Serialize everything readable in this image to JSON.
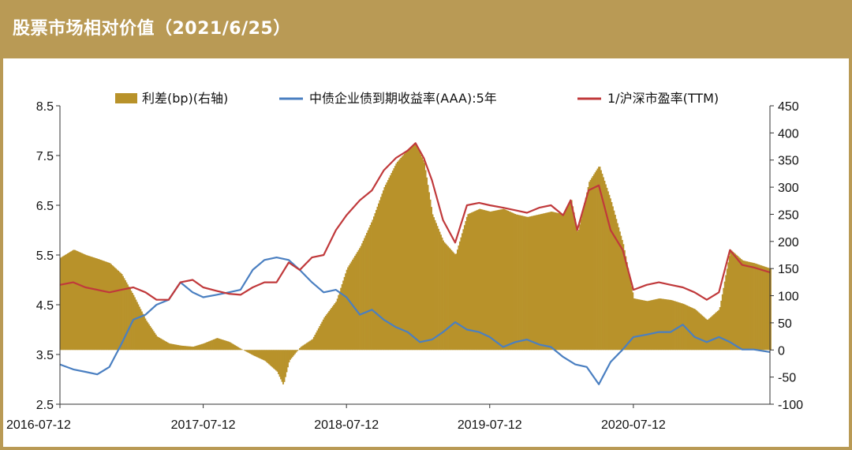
{
  "header": {
    "title": "股票市场相对价值（2021/6/25）"
  },
  "chart_data": {
    "type": "bar+line",
    "title": "股票市场相对价值（2021/6/25）",
    "legend": {
      "placement": "top",
      "items": [
        "利差(bp)(右轴)",
        "中债企业债到期收益率(AAA):5年",
        "1/沪深市盈率(TTM)"
      ]
    },
    "x_ticks": [
      "2016-07-12",
      "2017-07-12",
      "2018-07-12",
      "2019-07-12",
      "2020-07-12"
    ],
    "x_range": [
      "2016-07-12",
      "2021-06-25"
    ],
    "y_left": {
      "range": [
        2.5,
        8.5
      ],
      "ticks": [
        "8.5",
        "7.5",
        "6.5",
        "5.5",
        "4.5",
        "3.5",
        "2.5"
      ]
    },
    "y_right": {
      "range": [
        -100,
        450
      ],
      "ticks": [
        "450",
        "400",
        "350",
        "300",
        "250",
        "200",
        "150",
        "100",
        "50",
        "0",
        "-50",
        "-100"
      ]
    },
    "colors": {
      "spread": "#b8922a",
      "yield": "#4a7fc1",
      "pe_inverse": "#c0393b"
    },
    "series": [
      {
        "name": "利差(bp)(右轴)",
        "axis": "right",
        "type": "bar",
        "points": [
          [
            "2016-07-12",
            170
          ],
          [
            "2016-08-15",
            185
          ],
          [
            "2016-09-15",
            175
          ],
          [
            "2016-10-15",
            168
          ],
          [
            "2016-11-15",
            160
          ],
          [
            "2016-12-15",
            140
          ],
          [
            "2017-01-15",
            100
          ],
          [
            "2017-02-15",
            55
          ],
          [
            "2017-03-15",
            25
          ],
          [
            "2017-04-15",
            12
          ],
          [
            "2017-05-15",
            8
          ],
          [
            "2017-06-15",
            6
          ],
          [
            "2017-07-12",
            12
          ],
          [
            "2017-08-15",
            22
          ],
          [
            "2017-09-15",
            15
          ],
          [
            "2017-10-15",
            2
          ],
          [
            "2017-11-15",
            -10
          ],
          [
            "2017-12-15",
            -20
          ],
          [
            "2018-01-15",
            -40
          ],
          [
            "2018-01-31",
            -65
          ],
          [
            "2018-02-15",
            -20
          ],
          [
            "2018-03-15",
            5
          ],
          [
            "2018-04-15",
            20
          ],
          [
            "2018-05-15",
            60
          ],
          [
            "2018-06-15",
            90
          ],
          [
            "2018-07-12",
            150
          ],
          [
            "2018-08-15",
            190
          ],
          [
            "2018-09-15",
            240
          ],
          [
            "2018-10-15",
            300
          ],
          [
            "2018-11-15",
            345
          ],
          [
            "2018-12-15",
            370
          ],
          [
            "2019-01-04",
            380
          ],
          [
            "2019-01-25",
            345
          ],
          [
            "2019-02-15",
            250
          ],
          [
            "2019-03-15",
            200
          ],
          [
            "2019-04-15",
            175
          ],
          [
            "2019-05-15",
            250
          ],
          [
            "2019-06-15",
            260
          ],
          [
            "2019-07-12",
            255
          ],
          [
            "2019-08-15",
            260
          ],
          [
            "2019-09-15",
            250
          ],
          [
            "2019-10-15",
            245
          ],
          [
            "2019-11-15",
            250
          ],
          [
            "2019-12-15",
            255
          ],
          [
            "2020-01-15",
            250
          ],
          [
            "2020-02-03",
            280
          ],
          [
            "2020-02-20",
            215
          ],
          [
            "2020-03-20",
            310
          ],
          [
            "2020-04-15",
            340
          ],
          [
            "2020-05-15",
            275
          ],
          [
            "2020-06-15",
            195
          ],
          [
            "2020-07-12",
            95
          ],
          [
            "2020-08-15",
            90
          ],
          [
            "2020-09-15",
            95
          ],
          [
            "2020-10-15",
            92
          ],
          [
            "2020-11-15",
            85
          ],
          [
            "2020-12-15",
            75
          ],
          [
            "2021-01-15",
            55
          ],
          [
            "2021-02-15",
            75
          ],
          [
            "2021-03-15",
            185
          ],
          [
            "2021-04-15",
            165
          ],
          [
            "2021-05-15",
            160
          ],
          [
            "2021-06-25",
            150
          ]
        ]
      },
      {
        "name": "中债企业债到期收益率(AAA):5年",
        "axis": "left",
        "type": "line",
        "points": [
          [
            "2016-07-12",
            3.3
          ],
          [
            "2016-08-15",
            3.2
          ],
          [
            "2016-09-15",
            3.15
          ],
          [
            "2016-10-15",
            3.1
          ],
          [
            "2016-11-15",
            3.25
          ],
          [
            "2016-12-15",
            3.7
          ],
          [
            "2017-01-15",
            4.2
          ],
          [
            "2017-02-15",
            4.3
          ],
          [
            "2017-03-15",
            4.5
          ],
          [
            "2017-04-15",
            4.6
          ],
          [
            "2017-05-15",
            4.95
          ],
          [
            "2017-06-15",
            4.75
          ],
          [
            "2017-07-12",
            4.65
          ],
          [
            "2017-08-15",
            4.7
          ],
          [
            "2017-09-15",
            4.75
          ],
          [
            "2017-10-15",
            4.8
          ],
          [
            "2017-11-15",
            5.2
          ],
          [
            "2017-12-15",
            5.4
          ],
          [
            "2018-01-15",
            5.45
          ],
          [
            "2018-02-15",
            5.4
          ],
          [
            "2018-03-15",
            5.2
          ],
          [
            "2018-04-15",
            4.95
          ],
          [
            "2018-05-15",
            4.75
          ],
          [
            "2018-06-15",
            4.8
          ],
          [
            "2018-07-12",
            4.65
          ],
          [
            "2018-08-15",
            4.3
          ],
          [
            "2018-09-15",
            4.4
          ],
          [
            "2018-10-15",
            4.2
          ],
          [
            "2018-11-15",
            4.05
          ],
          [
            "2018-12-15",
            3.95
          ],
          [
            "2019-01-15",
            3.75
          ],
          [
            "2019-02-15",
            3.8
          ],
          [
            "2019-03-15",
            3.95
          ],
          [
            "2019-04-15",
            4.15
          ],
          [
            "2019-05-15",
            4.0
          ],
          [
            "2019-06-15",
            3.95
          ],
          [
            "2019-07-12",
            3.85
          ],
          [
            "2019-08-15",
            3.65
          ],
          [
            "2019-09-15",
            3.75
          ],
          [
            "2019-10-15",
            3.8
          ],
          [
            "2019-11-15",
            3.7
          ],
          [
            "2019-12-15",
            3.65
          ],
          [
            "2020-01-15",
            3.45
          ],
          [
            "2020-02-15",
            3.3
          ],
          [
            "2020-03-15",
            3.25
          ],
          [
            "2020-04-15",
            2.9
          ],
          [
            "2020-05-15",
            3.35
          ],
          [
            "2020-06-15",
            3.6
          ],
          [
            "2020-07-12",
            3.85
          ],
          [
            "2020-08-15",
            3.9
          ],
          [
            "2020-09-15",
            3.95
          ],
          [
            "2020-10-15",
            3.95
          ],
          [
            "2020-11-15",
            4.1
          ],
          [
            "2020-12-15",
            3.85
          ],
          [
            "2021-01-15",
            3.75
          ],
          [
            "2021-02-15",
            3.85
          ],
          [
            "2021-03-15",
            3.75
          ],
          [
            "2021-04-15",
            3.6
          ],
          [
            "2021-05-15",
            3.6
          ],
          [
            "2021-06-25",
            3.55
          ]
        ]
      },
      {
        "name": "1/沪深市盈率(TTM)",
        "axis": "left",
        "type": "line",
        "points": [
          [
            "2016-07-12",
            4.9
          ],
          [
            "2016-08-15",
            4.95
          ],
          [
            "2016-09-15",
            4.85
          ],
          [
            "2016-10-15",
            4.8
          ],
          [
            "2016-11-15",
            4.75
          ],
          [
            "2016-12-15",
            4.8
          ],
          [
            "2017-01-15",
            4.85
          ],
          [
            "2017-02-15",
            4.75
          ],
          [
            "2017-03-15",
            4.6
          ],
          [
            "2017-04-15",
            4.6
          ],
          [
            "2017-05-15",
            4.95
          ],
          [
            "2017-06-15",
            5.0
          ],
          [
            "2017-07-12",
            4.85
          ],
          [
            "2017-08-15",
            4.78
          ],
          [
            "2017-09-15",
            4.72
          ],
          [
            "2017-10-15",
            4.7
          ],
          [
            "2017-11-15",
            4.85
          ],
          [
            "2017-12-15",
            4.95
          ],
          [
            "2018-01-15",
            4.95
          ],
          [
            "2018-02-15",
            5.35
          ],
          [
            "2018-03-15",
            5.2
          ],
          [
            "2018-04-15",
            5.45
          ],
          [
            "2018-05-15",
            5.5
          ],
          [
            "2018-06-15",
            6.0
          ],
          [
            "2018-07-12",
            6.3
          ],
          [
            "2018-08-15",
            6.6
          ],
          [
            "2018-09-15",
            6.8
          ],
          [
            "2018-10-15",
            7.2
          ],
          [
            "2018-11-15",
            7.45
          ],
          [
            "2018-12-15",
            7.6
          ],
          [
            "2019-01-04",
            7.75
          ],
          [
            "2019-01-25",
            7.45
          ],
          [
            "2019-02-15",
            7.0
          ],
          [
            "2019-03-15",
            6.2
          ],
          [
            "2019-04-15",
            5.75
          ],
          [
            "2019-05-15",
            6.5
          ],
          [
            "2019-06-15",
            6.55
          ],
          [
            "2019-07-12",
            6.5
          ],
          [
            "2019-08-15",
            6.45
          ],
          [
            "2019-09-15",
            6.4
          ],
          [
            "2019-10-15",
            6.35
          ],
          [
            "2019-11-15",
            6.45
          ],
          [
            "2019-12-15",
            6.5
          ],
          [
            "2020-01-15",
            6.3
          ],
          [
            "2020-02-03",
            6.6
          ],
          [
            "2020-02-20",
            6.0
          ],
          [
            "2020-03-20",
            6.8
          ],
          [
            "2020-04-15",
            6.9
          ],
          [
            "2020-05-15",
            6.0
          ],
          [
            "2020-06-15",
            5.6
          ],
          [
            "2020-07-12",
            4.8
          ],
          [
            "2020-08-15",
            4.9
          ],
          [
            "2020-09-15",
            4.95
          ],
          [
            "2020-10-15",
            4.9
          ],
          [
            "2020-11-15",
            4.85
          ],
          [
            "2020-12-15",
            4.75
          ],
          [
            "2021-01-15",
            4.6
          ],
          [
            "2021-02-15",
            4.75
          ],
          [
            "2021-03-15",
            5.6
          ],
          [
            "2021-04-15",
            5.3
          ],
          [
            "2021-05-15",
            5.25
          ],
          [
            "2021-06-25",
            5.15
          ]
        ]
      }
    ]
  }
}
